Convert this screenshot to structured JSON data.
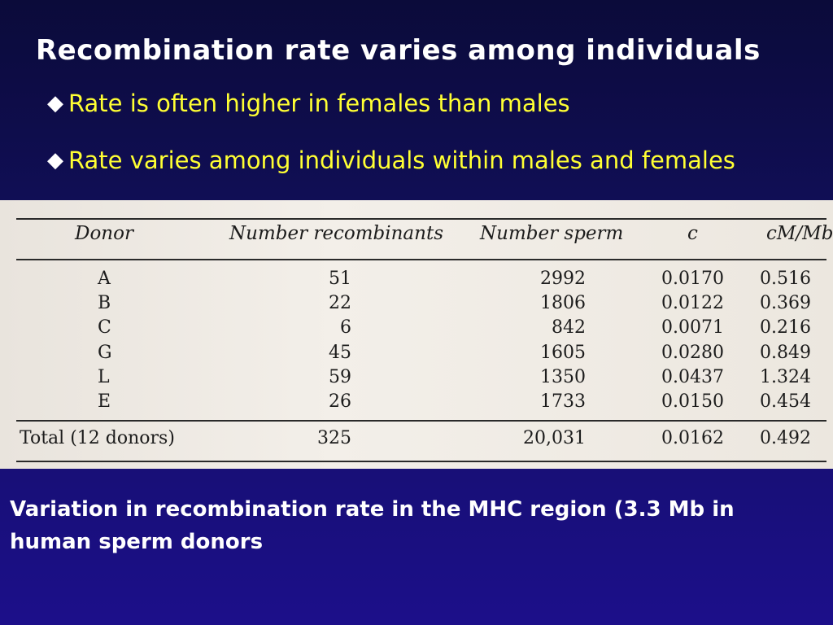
{
  "slide": {
    "title": "Recombination rate varies among individuals",
    "bullets": [
      "Rate is often higher in females than males",
      "Rate varies among individuals within males and females"
    ],
    "caption": "Variation in recombination rate in the MHC region (3.3 Mb in human sperm donors"
  },
  "table": {
    "headers": [
      "Donor",
      "Number recombinants",
      "Number sperm",
      "c",
      "cM/Mb"
    ],
    "rows": [
      {
        "donor": "A",
        "recombinants": "51",
        "sperm": "2992",
        "c": "0.0170",
        "cm": "0.516"
      },
      {
        "donor": "B",
        "recombinants": "22",
        "sperm": "1806",
        "c": "0.0122",
        "cm": "0.369"
      },
      {
        "donor": "C",
        "recombinants": "6",
        "sperm": "842",
        "c": "0.0071",
        "cm": "0.216"
      },
      {
        "donor": "G",
        "recombinants": "45",
        "sperm": "1605",
        "c": "0.0280",
        "cm": "0.849"
      },
      {
        "donor": "L",
        "recombinants": "59",
        "sperm": "1350",
        "c": "0.0437",
        "cm": "1.324"
      },
      {
        "donor": "E",
        "recombinants": "26",
        "sperm": "1733",
        "c": "0.0150",
        "cm": "0.454"
      }
    ],
    "total": {
      "label": "Total (12 donors)",
      "recombinants": "325",
      "sperm": "20,031",
      "c": "0.0162",
      "cm": "0.492"
    }
  }
}
